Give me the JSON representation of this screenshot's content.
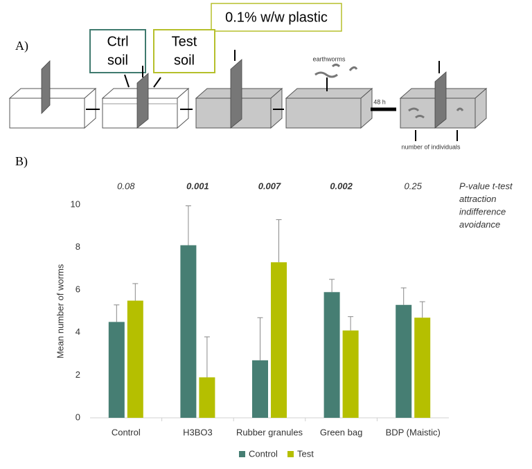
{
  "panel_a": {
    "label": "A)",
    "plastic_label": "0.1% w/w plastic",
    "ctrl_label": [
      "Ctrl",
      "soil"
    ],
    "test_label": [
      "Test",
      "soil"
    ],
    "earthworms": "earthworms",
    "duration": "48 h",
    "count_label": "number of individuals"
  },
  "chart_data": {
    "type": "bar",
    "panel_label": "B)",
    "y_label": "Mean number of worms",
    "categories": [
      "Control",
      "H3BO3",
      "Rubber granules",
      "Green bag",
      "BDP (Maistic)"
    ],
    "series": [
      {
        "name": "Control",
        "color": "#467e73",
        "values": [
          4.5,
          8.1,
          2.7,
          5.9,
          5.3
        ],
        "errors": [
          0.8,
          1.85,
          2.0,
          0.6,
          0.8
        ]
      },
      {
        "name": "Test",
        "color": "#b5bf00",
        "values": [
          5.5,
          1.9,
          7.3,
          4.1,
          4.7
        ],
        "errors": [
          0.8,
          1.9,
          2.0,
          0.65,
          0.75
        ]
      }
    ],
    "ylim": [
      0,
      10
    ],
    "yticks": [
      0,
      2,
      4,
      6,
      8,
      10
    ],
    "grid": false,
    "p_values": [
      {
        "label": "0.08",
        "color": "#000000"
      },
      {
        "label": "0.001",
        "color": "#e00000"
      },
      {
        "label": "0.007",
        "color": "#5a8f2e"
      },
      {
        "label": "0.002",
        "color": "#e00000"
      },
      {
        "label": "0.25",
        "color": "#000000"
      }
    ],
    "p_legend": [
      {
        "label": "P-value t-test",
        "color": "#000000"
      },
      {
        "label": "attraction",
        "color": "#5a8f2e"
      },
      {
        "label": "indifference",
        "color": "#000000"
      },
      {
        "label": "avoidance",
        "color": "#e00000"
      }
    ]
  }
}
